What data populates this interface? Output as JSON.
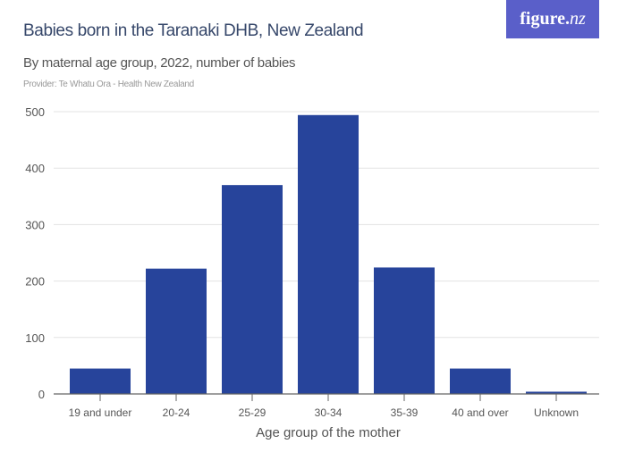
{
  "header": {
    "title": "Babies born in the Taranaki DHB, New Zealand",
    "subtitle": "By maternal age group, 2022, number of babies",
    "provider": "Provider: Te Whatu Ora - Health New Zealand",
    "logo": "figure.nz"
  },
  "chart_data": {
    "type": "bar",
    "title": "Babies born in the Taranaki DHB, New Zealand",
    "subtitle": "By maternal age group, 2022, number of babies",
    "xlabel": "Age group of the mother",
    "ylabel": "",
    "categories": [
      "19 and under",
      "20-24",
      "25-29",
      "30-34",
      "35-39",
      "40 and over",
      "Unknown"
    ],
    "values": [
      45,
      222,
      370,
      494,
      224,
      45,
      4
    ],
    "ylim": [
      0,
      500
    ],
    "yticks": [
      0,
      100,
      200,
      300,
      400,
      500
    ],
    "grid": true,
    "colors": {
      "bar": "#27449b",
      "grid": "#e3e3e3",
      "axis": "#666666",
      "logo_bg": "#5a5fc9"
    }
  }
}
